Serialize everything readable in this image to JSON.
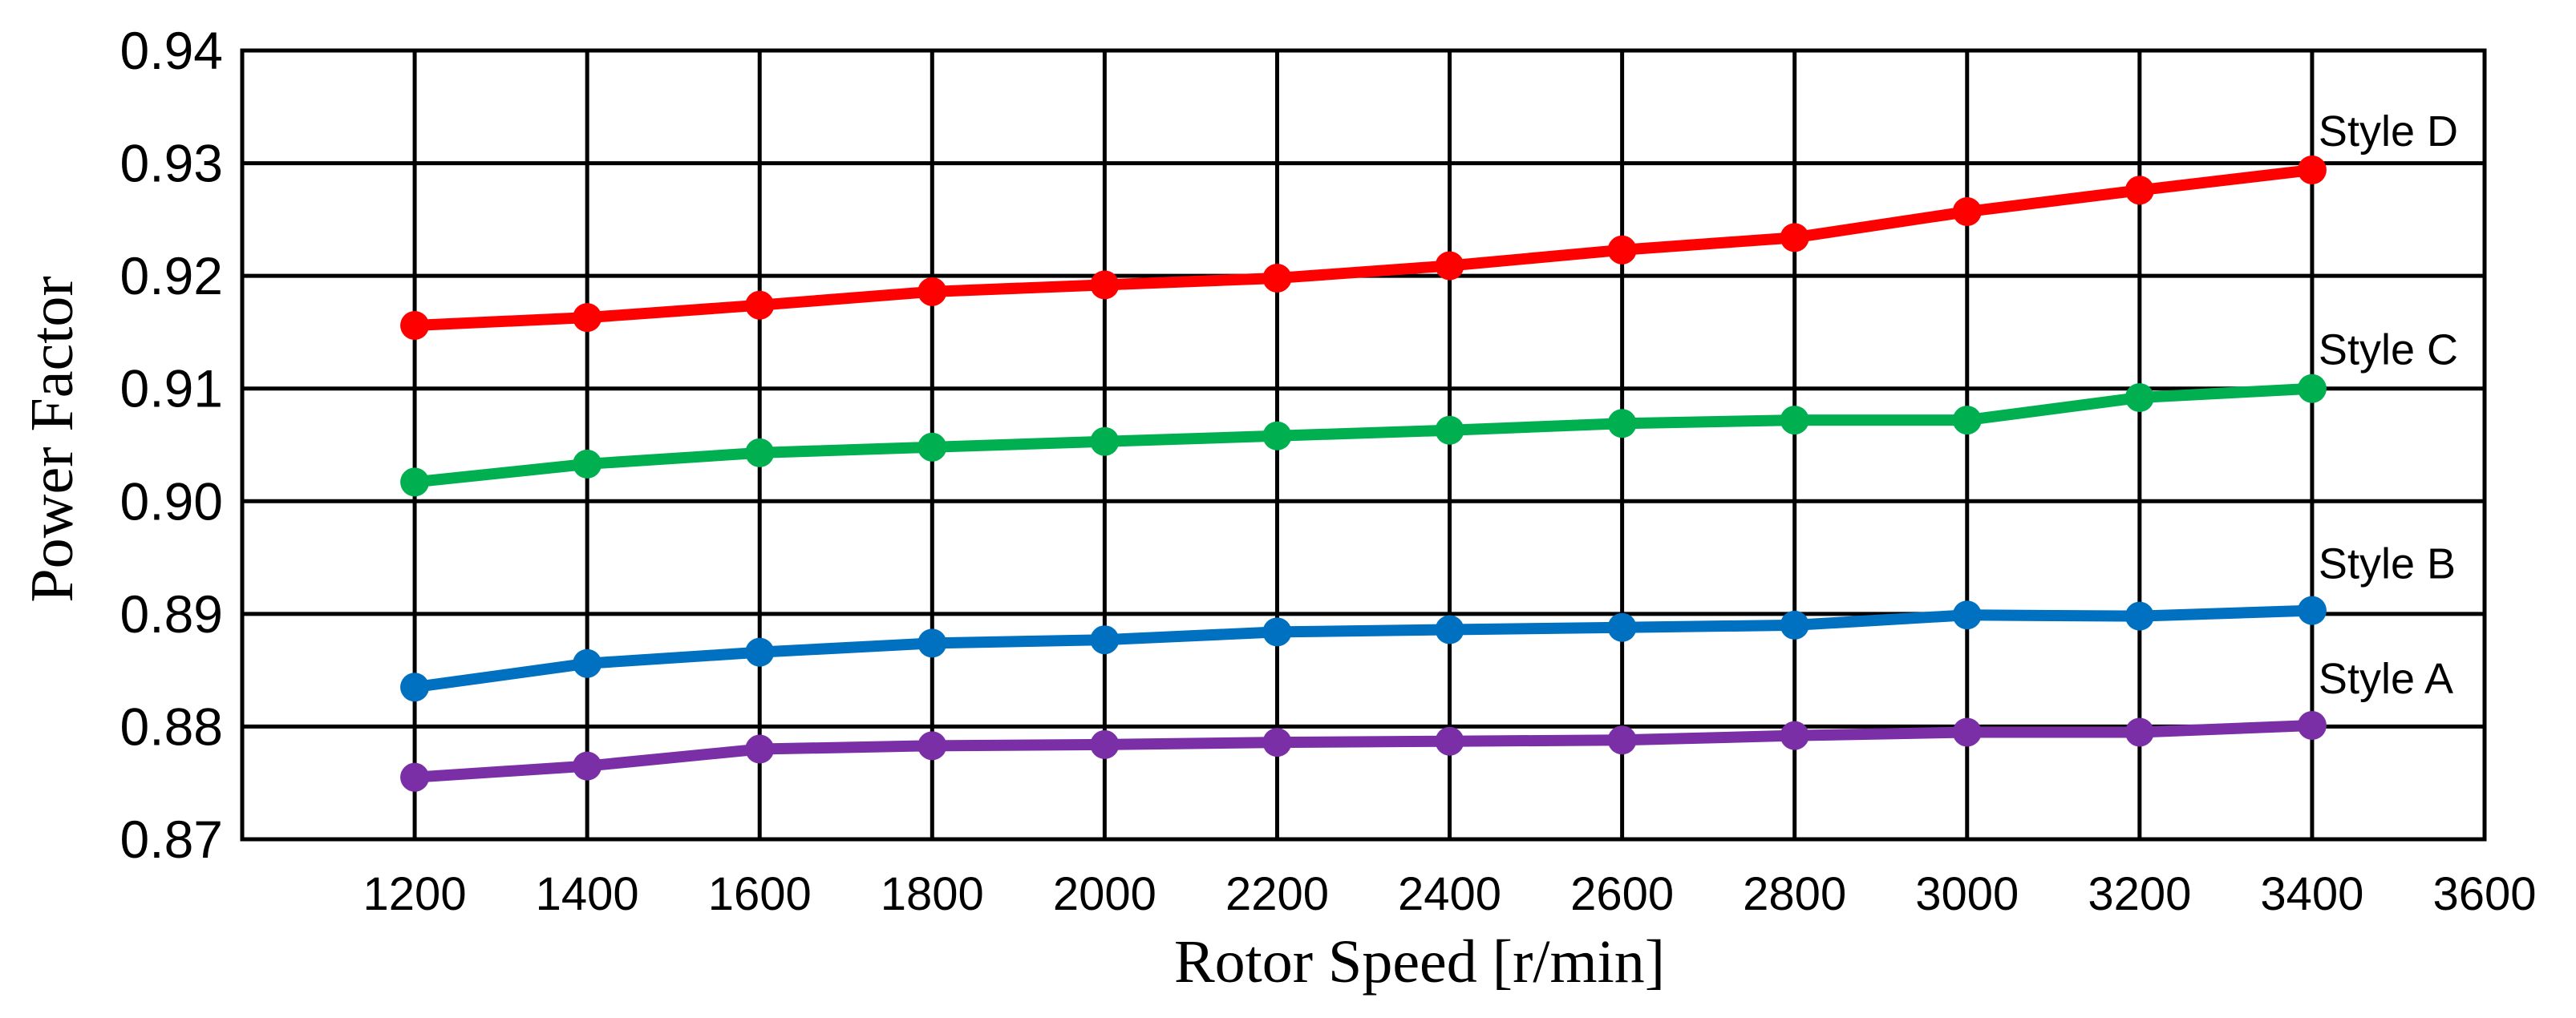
{
  "chart_data": {
    "type": "line",
    "title": "",
    "xlabel": "Rotor Speed  [r/min]",
    "ylabel": "Power  Factor",
    "xlim": [
      1000,
      3600
    ],
    "ylim": [
      0.87,
      0.94
    ],
    "x": [
      1200,
      1400,
      1600,
      1800,
      2000,
      2200,
      2400,
      2600,
      2800,
      3000,
      3200,
      3400
    ],
    "x_ticks": [
      "1200",
      "1400",
      "1600",
      "1800",
      "2000",
      "2200",
      "2400",
      "2600",
      "2800",
      "3000",
      "3200",
      "3400",
      "3600"
    ],
    "y_ticks": [
      "0.87",
      "0.88",
      "0.89",
      "0.90",
      "0.91",
      "0.92",
      "0.93",
      "0.94"
    ],
    "grid": true,
    "series": [
      {
        "name": "Style A",
        "color": "#7B2FA6",
        "values": [
          0.8755,
          0.8765,
          0.878,
          0.8783,
          0.8784,
          0.8786,
          0.8787,
          0.8788,
          0.8792,
          0.8795,
          0.8795,
          0.8801
        ]
      },
      {
        "name": "Style B",
        "color": "#0070C0",
        "values": [
          0.8835,
          0.8856,
          0.8866,
          0.8874,
          0.8877,
          0.8884,
          0.8886,
          0.8888,
          0.889,
          0.8899,
          0.8898,
          0.8903
        ]
      },
      {
        "name": "Style C",
        "color": "#00B050",
        "values": [
          0.9017,
          0.9033,
          0.9043,
          0.9048,
          0.9053,
          0.9058,
          0.9063,
          0.9069,
          0.9072,
          0.9072,
          0.9092,
          0.91
        ]
      },
      {
        "name": "Style D",
        "color": "#FF0000",
        "values": [
          0.9156,
          0.9163,
          0.9174,
          0.9186,
          0.9192,
          0.9198,
          0.9209,
          0.9223,
          0.9234,
          0.9257,
          0.9276,
          0.9294
        ]
      }
    ]
  }
}
